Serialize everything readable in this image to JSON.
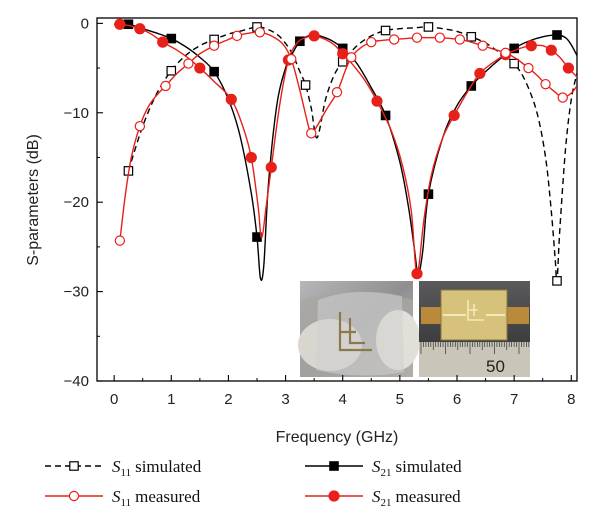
{
  "chart_data": {
    "type": "line",
    "xlabel": "Frequency (GHz)",
    "ylabel": "S-parameters (dB)",
    "xlim": [
      -0.3,
      8.1
    ],
    "ylim": [
      -40,
      0.6
    ],
    "xticks": [
      0,
      1,
      2,
      3,
      4,
      5,
      6,
      7,
      8
    ],
    "yticks": [
      0,
      -10,
      -20,
      -30,
      -40
    ],
    "grid": false,
    "legend_position": "bottom",
    "series": [
      {
        "name": "S11 simulated",
        "legend_base": "S",
        "legend_sub": "11",
        "legend_rest": "simulated",
        "style": "dashed",
        "marker": "open-square",
        "color": "#000000",
        "x": [
          0.25,
          1.0,
          1.75,
          2.5,
          3.35,
          4.0,
          4.75,
          5.5,
          6.25,
          7.0,
          7.75
        ],
        "y": [
          -16.5,
          -5.3,
          -1.8,
          -0.4,
          -6.9,
          -4.3,
          -0.8,
          -0.4,
          -1.5,
          -4.5,
          -28.8
        ],
        "line_x": [
          0.25,
          0.5,
          0.75,
          1.0,
          1.25,
          1.5,
          1.75,
          2.0,
          2.25,
          2.5,
          2.7,
          2.9,
          3.1,
          3.25,
          3.35,
          3.45,
          3.55,
          3.7,
          3.85,
          4.0,
          4.25,
          4.5,
          4.75,
          5.0,
          5.25,
          5.5,
          5.75,
          6.0,
          6.25,
          6.5,
          6.75,
          7.0,
          7.2,
          7.4,
          7.55,
          7.65,
          7.72,
          7.75,
          7.8,
          7.9,
          8.0,
          8.1
        ],
        "line_y": [
          -16.5,
          -11.5,
          -7.8,
          -5.3,
          -3.6,
          -2.5,
          -1.8,
          -1.2,
          -0.8,
          -0.4,
          -0.7,
          -1.5,
          -3.2,
          -5.4,
          -6.9,
          -9.5,
          -12.8,
          -8.5,
          -5.8,
          -4.3,
          -2.5,
          -1.4,
          -0.8,
          -0.6,
          -0.5,
          -0.4,
          -0.6,
          -0.9,
          -1.5,
          -2.2,
          -3.3,
          -4.5,
          -6.5,
          -10.0,
          -15.0,
          -21.0,
          -26.5,
          -28.8,
          -23.0,
          -14.0,
          -8.5,
          -5.6
        ]
      },
      {
        "name": "S11 measured",
        "legend_base": "S",
        "legend_sub": "11",
        "legend_rest": "measured",
        "style": "solid",
        "marker": "open-circle",
        "color": "#e8201a",
        "x": [
          0.1,
          0.45,
          0.9,
          1.3,
          1.75,
          2.15,
          2.55,
          3.1,
          3.45,
          3.9,
          4.15,
          4.5,
          4.9,
          5.3,
          5.7,
          6.05,
          6.45,
          6.85,
          7.25,
          7.55,
          7.85
        ],
        "y": [
          -24.3,
          -11.5,
          -7.0,
          -4.5,
          -2.5,
          -1.4,
          -1.0,
          -4.0,
          -12.3,
          -7.7,
          -3.8,
          -2.1,
          -1.8,
          -1.6,
          -1.6,
          -1.8,
          -2.5,
          -3.3,
          -5.0,
          -6.8,
          -8.3
        ],
        "line_x": [
          0.1,
          0.2,
          0.3,
          0.45,
          0.6,
          0.75,
          0.9,
          1.1,
          1.3,
          1.5,
          1.75,
          2.0,
          2.15,
          2.35,
          2.55,
          2.75,
          2.95,
          3.1,
          3.25,
          3.4,
          3.45,
          3.55,
          3.7,
          3.9,
          4.05,
          4.15,
          4.3,
          4.5,
          4.7,
          4.9,
          5.1,
          5.3,
          5.5,
          5.7,
          5.9,
          6.05,
          6.25,
          6.45,
          6.65,
          6.85,
          7.05,
          7.25,
          7.4,
          7.55,
          7.7,
          7.85,
          8.0,
          8.1
        ],
        "line_y": [
          -24.3,
          -19.0,
          -15.0,
          -11.5,
          -9.3,
          -8.0,
          -7.0,
          -5.6,
          -4.5,
          -3.4,
          -2.5,
          -1.8,
          -1.4,
          -1.1,
          -1.0,
          -1.4,
          -2.3,
          -4.0,
          -7.5,
          -11.5,
          -12.3,
          -11.5,
          -9.8,
          -7.7,
          -5.2,
          -3.8,
          -2.8,
          -2.1,
          -1.9,
          -1.8,
          -1.7,
          -1.6,
          -1.6,
          -1.6,
          -1.7,
          -1.8,
          -2.1,
          -2.5,
          -2.9,
          -3.3,
          -4.0,
          -5.0,
          -5.8,
          -6.8,
          -7.6,
          -8.3,
          -7.8,
          -7.0
        ]
      },
      {
        "name": "S21 simulated",
        "legend_base": "S",
        "legend_sub": "21",
        "legend_rest": "simulated",
        "style": "solid",
        "marker": "filled-square",
        "color": "#000000",
        "x": [
          0.25,
          1.0,
          1.75,
          2.5,
          3.25,
          4.0,
          4.75,
          5.5,
          6.25,
          7.0,
          7.75
        ],
        "y": [
          -0.1,
          -1.7,
          -5.4,
          -23.9,
          -2.0,
          -2.8,
          -10.3,
          -19.1,
          -7.0,
          -2.8,
          -1.3
        ],
        "line_x": [
          0.0,
          0.25,
          0.5,
          0.75,
          1.0,
          1.25,
          1.5,
          1.75,
          2.0,
          2.2,
          2.4,
          2.5,
          2.56,
          2.62,
          2.7,
          2.85,
          3.0,
          3.1,
          3.25,
          3.4,
          3.5,
          3.6,
          3.8,
          4.0,
          4.25,
          4.5,
          4.75,
          5.0,
          5.15,
          5.25,
          5.32,
          5.4,
          5.5,
          5.75,
          6.0,
          6.25,
          6.5,
          6.75,
          7.0,
          7.25,
          7.5,
          7.75,
          7.9,
          8.0,
          8.1
        ],
        "line_y": [
          -0.1,
          -0.1,
          -0.6,
          -1.1,
          -1.7,
          -2.6,
          -3.8,
          -5.4,
          -8.5,
          -12.5,
          -19.0,
          -23.9,
          -28.5,
          -27.0,
          -18.0,
          -9.0,
          -5.0,
          -3.6,
          -2.0,
          -1.4,
          -1.3,
          -1.4,
          -1.9,
          -2.8,
          -4.5,
          -7.2,
          -10.3,
          -15.5,
          -20.5,
          -25.0,
          -28.0,
          -25.5,
          -19.1,
          -12.8,
          -9.2,
          -7.0,
          -5.4,
          -4.0,
          -2.8,
          -2.0,
          -1.5,
          -1.3,
          -1.6,
          -2.4,
          -3.6
        ]
      },
      {
        "name": "S21 measured",
        "legend_base": "S",
        "legend_sub": "21",
        "legend_rest": "measured",
        "style": "solid",
        "marker": "filled-circle",
        "color": "#e8201a",
        "x": [
          0.1,
          0.45,
          0.85,
          1.5,
          2.05,
          2.4,
          2.75,
          3.05,
          3.5,
          4.0,
          4.6,
          5.3,
          5.95,
          6.4,
          6.85,
          7.3,
          7.65,
          7.95
        ],
        "y": [
          -0.1,
          -0.6,
          -2.1,
          -5.0,
          -8.5,
          -15.0,
          -16.1,
          -4.1,
          -1.4,
          -3.4,
          -8.7,
          -28.0,
          -10.3,
          -5.6,
          -3.5,
          -2.5,
          -3.0,
          -5.0
        ],
        "line_x": [
          0.0,
          0.1,
          0.3,
          0.45,
          0.65,
          0.85,
          1.1,
          1.3,
          1.5,
          1.75,
          2.05,
          2.25,
          2.4,
          2.52,
          2.58,
          2.66,
          2.75,
          2.9,
          3.05,
          3.2,
          3.35,
          3.5,
          3.7,
          3.85,
          4.0,
          4.2,
          4.4,
          4.6,
          4.85,
          5.05,
          5.2,
          5.3,
          5.42,
          5.55,
          5.75,
          5.95,
          6.2,
          6.4,
          6.65,
          6.85,
          7.1,
          7.3,
          7.5,
          7.65,
          7.8,
          7.95,
          8.1
        ],
        "line_y": [
          -0.1,
          -0.1,
          -0.3,
          -0.6,
          -1.2,
          -2.1,
          -3.0,
          -3.9,
          -5.0,
          -6.5,
          -8.5,
          -11.5,
          -15.0,
          -20.5,
          -24.0,
          -20.5,
          -16.1,
          -9.0,
          -4.1,
          -2.2,
          -1.6,
          -1.4,
          -1.8,
          -2.4,
          -3.4,
          -4.8,
          -6.5,
          -8.7,
          -12.0,
          -16.0,
          -21.0,
          -28.0,
          -22.0,
          -17.0,
          -12.8,
          -10.3,
          -7.5,
          -5.6,
          -4.3,
          -3.5,
          -2.8,
          -2.5,
          -2.5,
          -3.0,
          -3.8,
          -5.0,
          -6.0
        ]
      }
    ]
  },
  "inset": {
    "ruler_number": "50",
    "colors": {
      "board": "#d6c27a",
      "copper": "#b98a3a",
      "ruler": "#c9c5b8",
      "glass_bg": "#9e9ea0"
    }
  }
}
